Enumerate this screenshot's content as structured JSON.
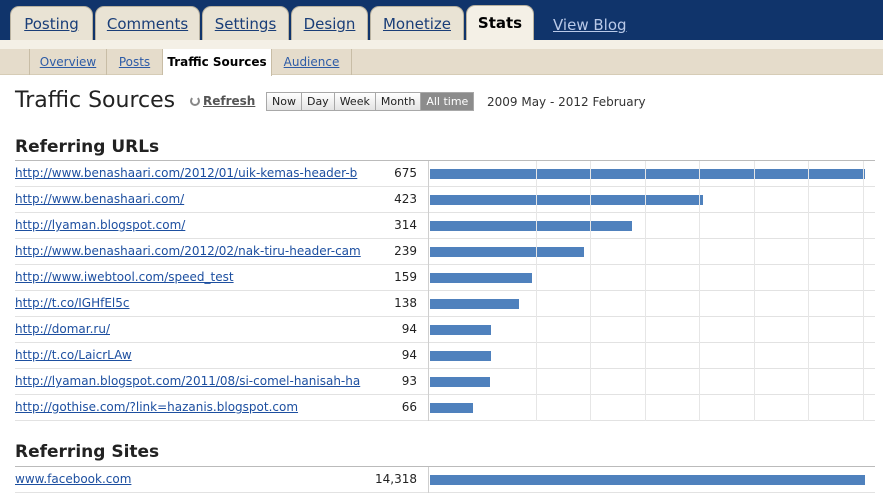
{
  "nav": {
    "tabs": [
      {
        "label": "Posting"
      },
      {
        "label": "Comments"
      },
      {
        "label": "Settings"
      },
      {
        "label": "Design"
      },
      {
        "label": "Monetize"
      },
      {
        "label": "Stats"
      }
    ],
    "view_blog": "View Blog"
  },
  "subnav": {
    "tabs": [
      {
        "label": "Overview"
      },
      {
        "label": "Posts"
      },
      {
        "label": "Traffic Sources"
      },
      {
        "label": "Audience"
      }
    ]
  },
  "header": {
    "title": "Traffic Sources",
    "refresh": "Refresh",
    "ranges": [
      "Now",
      "Day",
      "Week",
      "Month",
      "All time"
    ],
    "selected_range": "All time",
    "date_range": "2009 May - 2012 February"
  },
  "referring_urls": {
    "heading": "Referring URLs",
    "max": 675,
    "rows": [
      {
        "url": "http://www.benashaari.com/2012/01/uik-kemas-header-b",
        "count": "675",
        "value": 675
      },
      {
        "url": "http://www.benashaari.com/",
        "count": "423",
        "value": 423
      },
      {
        "url": "http://lyaman.blogspot.com/",
        "count": "314",
        "value": 314
      },
      {
        "url": "http://www.benashaari.com/2012/02/nak-tiru-header-cam",
        "count": "239",
        "value": 239
      },
      {
        "url": "http://www.iwebtool.com/speed_test",
        "count": "159",
        "value": 159
      },
      {
        "url": "http://t.co/IGHfEl5c",
        "count": "138",
        "value": 138
      },
      {
        "url": "http://domar.ru/",
        "count": "94",
        "value": 94
      },
      {
        "url": "http://t.co/LaicrLAw",
        "count": "94",
        "value": 94
      },
      {
        "url": "http://lyaman.blogspot.com/2011/08/si-comel-hanisah-ha",
        "count": "93",
        "value": 93
      },
      {
        "url": "http://gothise.com/?link=hazanis.blogspot.com",
        "count": "66",
        "value": 66
      }
    ]
  },
  "referring_sites": {
    "heading": "Referring Sites",
    "max": 14318,
    "rows": [
      {
        "url": "www.facebook.com",
        "count": "14,318",
        "value": 14318
      }
    ]
  }
}
